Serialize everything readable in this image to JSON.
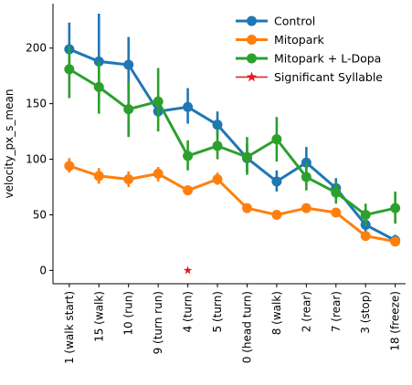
{
  "chart_data": {
    "type": "line",
    "title": "",
    "xlabel": "",
    "ylabel": "velocity_px_s_mean",
    "categories": [
      "1 (walk start)",
      "15 (walk)",
      "10 (run)",
      "9 (turn run)",
      "4 (turn)",
      "5 (turn)",
      "0 (head turn)",
      "8 (walk)",
      "2 (rear)",
      "7 (rear)",
      "3 (stop)",
      "18 (freeze)"
    ],
    "ylim": [
      -12,
      240
    ],
    "yticks": [
      0,
      50,
      100,
      150,
      200
    ],
    "grid": false,
    "legend_position": "top-right",
    "series": [
      {
        "name": "Control",
        "color": "#1f77b4",
        "values": [
          199,
          188,
          185,
          143,
          147,
          131,
          101,
          80,
          97,
          74,
          41,
          27
        ],
        "ci_low": [
          175,
          150,
          162,
          138,
          132,
          120,
          88,
          71,
          86,
          66,
          33,
          24
        ],
        "ci_high": [
          223,
          231,
          210,
          149,
          164,
          143,
          114,
          90,
          111,
          83,
          51,
          32
        ]
      },
      {
        "name": "Mitopark",
        "color": "#ff7f0e",
        "values": [
          94,
          85,
          82,
          87,
          72,
          82,
          56,
          50,
          56,
          52,
          31,
          26
        ],
        "ci_low": [
          88,
          78,
          75,
          80,
          69,
          77,
          53,
          47,
          53,
          48,
          29,
          22
        ],
        "ci_high": [
          101,
          92,
          89,
          93,
          76,
          88,
          60,
          54,
          60,
          56,
          34,
          30
        ]
      },
      {
        "name": "Mitopark + L-Dopa",
        "color": "#2ca02c",
        "values": [
          181,
          165,
          145,
          152,
          103,
          112,
          102,
          118,
          84,
          70,
          50,
          56
        ],
        "ci_low": [
          155,
          141,
          120,
          125,
          90,
          100,
          86,
          98,
          72,
          60,
          40,
          42
        ],
        "ci_high": [
          202,
          188,
          170,
          182,
          117,
          127,
          120,
          138,
          97,
          80,
          60,
          71
        ]
      }
    ],
    "markers": [
      {
        "name": "Significant Syllable",
        "color": "#e41a1c",
        "category": "4 (turn)",
        "value": 0
      }
    ]
  }
}
